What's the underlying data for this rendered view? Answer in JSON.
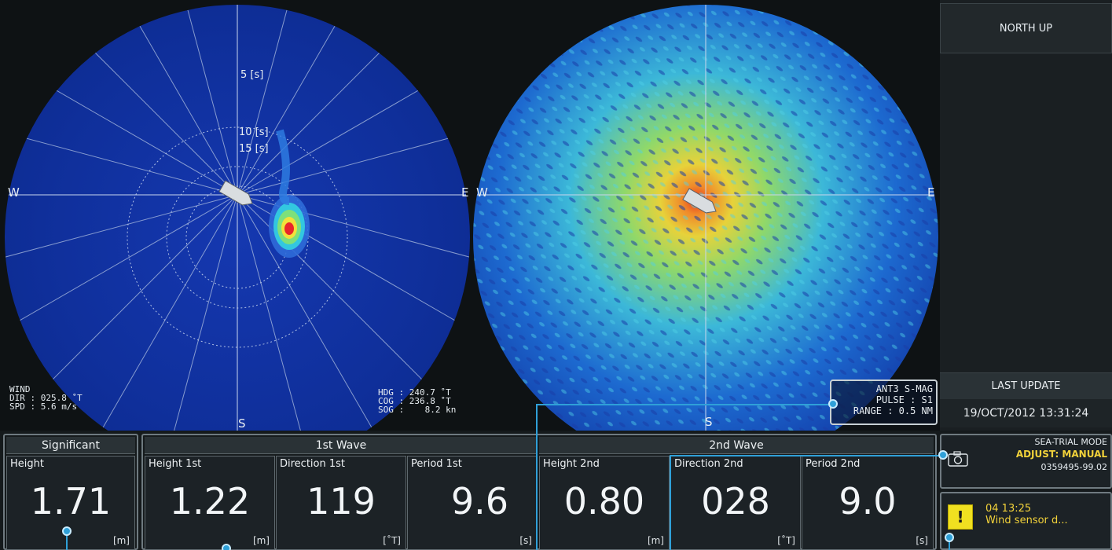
{
  "left_plot": {
    "rings": [
      "5 [s]",
      "10 [s]",
      "15 [s]"
    ],
    "compass": {
      "west": "W",
      "east": "E",
      "south": "S"
    },
    "wind": {
      "title": "WIND",
      "dir": "DIR : 025.8 ˚T",
      "spd": "SPD : 5.6 m/s"
    },
    "nav": {
      "hdg": "HDG : 240.7 ˚T",
      "cog": "COG : 236.8 ˚T",
      "sog": "SOG :    8.2 kn"
    }
  },
  "right_plot": {
    "compass": {
      "west": "W",
      "east": "E",
      "south": "S"
    },
    "antenna": {
      "ant": "ANT3 S-MAG",
      "pulse": "PULSE : S1",
      "range": "RANGE : 0.5 NM"
    }
  },
  "side": {
    "north_up": "NORTH UP",
    "last_update_label": "LAST UPDATE",
    "last_update_value": "19/OCT/2012 13:31:24",
    "mode_title": "SEA-TRIAL MODE",
    "mode_adjust": "ADJUST: MANUAL",
    "mode_id": "0359495-99.02",
    "alert_time": "04 13:25",
    "alert_text": "Wind sensor d..."
  },
  "significant": {
    "title": "Significant",
    "height": {
      "label": "Height",
      "value": "1.71",
      "unit": "[m]"
    }
  },
  "first_wave": {
    "title": "1st Wave",
    "cells": [
      {
        "label": "Height 1st",
        "value": "1.22",
        "unit": "[m]"
      },
      {
        "label": "Direction 1st",
        "value": "119",
        "unit": "[˚T]"
      },
      {
        "label": "Period 1st",
        "value": "9.6",
        "unit": "[s]"
      }
    ]
  },
  "second_wave": {
    "title": "2nd Wave",
    "cells": [
      {
        "label": "Height 2nd",
        "value": "0.80",
        "unit": "[m]"
      },
      {
        "label": "Direction 2nd",
        "value": "028",
        "unit": "[˚T]"
      },
      {
        "label": "Period 2nd",
        "value": "9.0",
        "unit": "[s]"
      }
    ]
  },
  "colors": {
    "background": "#0e1214",
    "plot_blue": "#1030a0",
    "accent": "#2fa0d8",
    "warning": "#f0e020",
    "mode_yellow": "#f2d23a"
  }
}
